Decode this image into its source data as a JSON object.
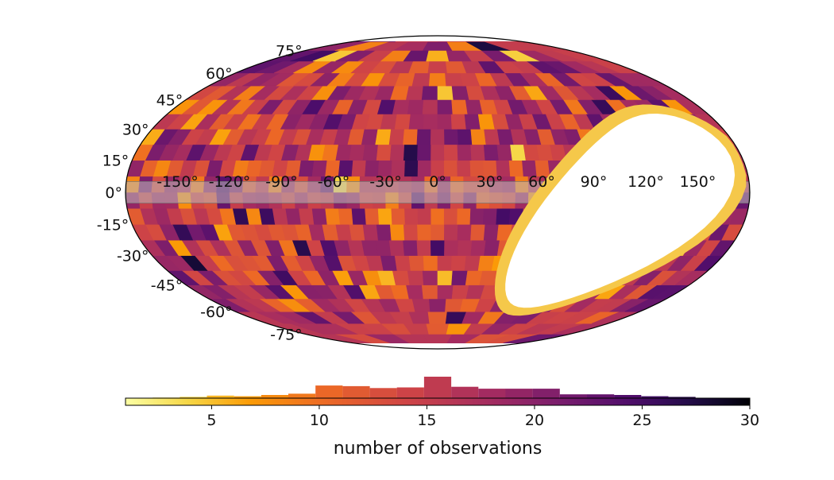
{
  "chart_data": {
    "type": "heatmap",
    "projection": "mollweide",
    "title": "",
    "colormap": "inferno_r",
    "grid": true,
    "longitude_tick_labels": [
      "-150°",
      "-120°",
      "-90°",
      "-60°",
      "-30°",
      "0°",
      "30°",
      "60°",
      "90°",
      "120°",
      "150°"
    ],
    "latitude_tick_labels": [
      "75°",
      "60°",
      "45°",
      "30°",
      "15°",
      "0°",
      "-15°",
      "-30°",
      "-45°",
      "-60°",
      "-75°"
    ],
    "longitude_ticks": [
      -150,
      -120,
      -90,
      -60,
      -30,
      0,
      30,
      60,
      90,
      120,
      150
    ],
    "latitude_ticks": [
      75,
      60,
      45,
      30,
      15,
      0,
      -15,
      -30,
      -45,
      -60,
      -75
    ],
    "masked_band": {
      "lat_min": -5,
      "lat_max": 5,
      "color": "#bdbdbd"
    },
    "unobserved_region": "white hole east of 60° longitude, roughly from +30° to -75° latitude",
    "colorbar": {
      "label": "number of observations",
      "range": [
        1,
        30
      ],
      "tick_values": [
        5,
        10,
        15,
        20,
        25,
        30
      ],
      "tick_labels": [
        "5",
        "10",
        "15",
        "20",
        "25",
        "30"
      ],
      "histogram_bins": [
        {
          "center": 1.75,
          "count": 1
        },
        {
          "center": 3.0,
          "count": 2
        },
        {
          "center": 4.25,
          "count": 4
        },
        {
          "center": 5.5,
          "count": 8
        },
        {
          "center": 6.75,
          "count": 6
        },
        {
          "center": 8.0,
          "count": 10
        },
        {
          "center": 9.25,
          "count": 14
        },
        {
          "center": 10.5,
          "count": 40
        },
        {
          "center": 11.75,
          "count": 38
        },
        {
          "center": 13.0,
          "count": 32
        },
        {
          "center": 14.25,
          "count": 34
        },
        {
          "center": 15.5,
          "count": 68
        },
        {
          "center": 16.75,
          "count": 36
        },
        {
          "center": 18.0,
          "count": 30
        },
        {
          "center": 19.25,
          "count": 30
        },
        {
          "center": 20.5,
          "count": 30
        },
        {
          "center": 21.75,
          "count": 12
        },
        {
          "center": 23.0,
          "count": 12
        },
        {
          "center": 24.25,
          "count": 10
        },
        {
          "center": 25.5,
          "count": 6
        },
        {
          "center": 26.75,
          "count": 4
        },
        {
          "center": 28.0,
          "count": 1
        },
        {
          "center": 29.25,
          "count": 0
        }
      ]
    }
  }
}
